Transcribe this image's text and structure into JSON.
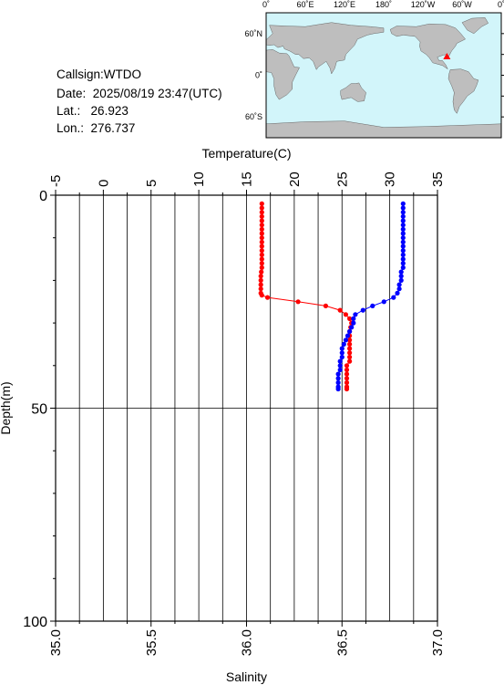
{
  "station": {
    "callsign_label": "Callsign:",
    "callsign": "WTDO",
    "date_label": "Date:",
    "date": "2025/08/19 23:47(UTC)",
    "lat_label": "Lat.:",
    "lat": "26.923",
    "lon_label": "Lon.:",
    "lon": "276.737"
  },
  "map": {
    "lon_ticks": [
      "0˚",
      "60˚E",
      "120˚E",
      "180˚",
      "120˚W",
      "60˚W",
      "0˚"
    ],
    "lat_ticks": [
      "60˚N",
      "0˚",
      "60˚S"
    ],
    "ocean_color": "#d2f5fa",
    "land_color": "#bebebe",
    "marker_color": "#ff0000",
    "marker_lon": 276.737,
    "marker_lat": 26.923
  },
  "chart_data": {
    "type": "line",
    "top_axis": {
      "label": "Temperature(C)",
      "range": [
        -5,
        35
      ],
      "ticks": [
        "-5",
        "0",
        "5",
        "10",
        "15",
        "20",
        "25",
        "30",
        "35"
      ]
    },
    "bottom_axis": {
      "label": "Salinity",
      "range": [
        35.0,
        37.0
      ],
      "ticks": [
        "35.0",
        "35.5",
        "36.0",
        "36.5",
        "37.0"
      ]
    },
    "y_axis": {
      "label": "Depth(m)",
      "range": [
        0,
        100
      ],
      "reversed": true,
      "ticks": [
        "0",
        "50",
        "100"
      ]
    },
    "grid": true,
    "series": [
      {
        "color": "#ff0000",
        "axis": "top",
        "points": [
          [
            16.6,
            2
          ],
          [
            16.6,
            3
          ],
          [
            16.6,
            4
          ],
          [
            16.6,
            5
          ],
          [
            16.6,
            6
          ],
          [
            16.6,
            7
          ],
          [
            16.6,
            8
          ],
          [
            16.6,
            9
          ],
          [
            16.6,
            10
          ],
          [
            16.6,
            11
          ],
          [
            16.6,
            12
          ],
          [
            16.6,
            13
          ],
          [
            16.6,
            14
          ],
          [
            16.6,
            15
          ],
          [
            16.6,
            16
          ],
          [
            16.6,
            17
          ],
          [
            16.55,
            18
          ],
          [
            16.5,
            19
          ],
          [
            16.5,
            20
          ],
          [
            16.5,
            21
          ],
          [
            16.5,
            22
          ],
          [
            16.5,
            23
          ],
          [
            16.6,
            23.5
          ],
          [
            17.2,
            24
          ],
          [
            20.4,
            25
          ],
          [
            23.3,
            26
          ],
          [
            24.8,
            27
          ],
          [
            25.4,
            28
          ],
          [
            25.8,
            29
          ],
          [
            26.0,
            30
          ],
          [
            25.9,
            31
          ],
          [
            25.8,
            32
          ],
          [
            25.8,
            33
          ],
          [
            25.8,
            34
          ],
          [
            25.8,
            35
          ],
          [
            25.8,
            36
          ],
          [
            25.8,
            37
          ],
          [
            25.8,
            38
          ],
          [
            25.8,
            39
          ],
          [
            25.5,
            40
          ],
          [
            25.5,
            41
          ],
          [
            25.5,
            42
          ],
          [
            25.5,
            43
          ],
          [
            25.5,
            44
          ],
          [
            25.5,
            45
          ],
          [
            25.5,
            45.5
          ]
        ]
      },
      {
        "color": "#0000ff",
        "axis": "bottom",
        "points": [
          [
            36.82,
            2
          ],
          [
            36.82,
            3
          ],
          [
            36.82,
            4
          ],
          [
            36.82,
            5
          ],
          [
            36.82,
            6
          ],
          [
            36.82,
            7
          ],
          [
            36.82,
            8
          ],
          [
            36.82,
            9
          ],
          [
            36.82,
            10
          ],
          [
            36.82,
            11
          ],
          [
            36.82,
            12
          ],
          [
            36.82,
            13
          ],
          [
            36.82,
            14
          ],
          [
            36.82,
            15
          ],
          [
            36.82,
            16
          ],
          [
            36.82,
            17
          ],
          [
            36.81,
            18
          ],
          [
            36.81,
            19
          ],
          [
            36.81,
            20
          ],
          [
            36.8,
            21
          ],
          [
            36.8,
            22
          ],
          [
            36.79,
            23
          ],
          [
            36.77,
            24
          ],
          [
            36.72,
            25
          ],
          [
            36.66,
            26
          ],
          [
            36.61,
            27
          ],
          [
            36.57,
            28
          ],
          [
            36.56,
            29
          ],
          [
            36.56,
            30
          ],
          [
            36.55,
            31
          ],
          [
            36.54,
            32
          ],
          [
            36.53,
            33
          ],
          [
            36.52,
            34
          ],
          [
            36.51,
            35
          ],
          [
            36.5,
            36
          ],
          [
            36.5,
            37
          ],
          [
            36.5,
            38
          ],
          [
            36.49,
            39
          ],
          [
            36.49,
            40
          ],
          [
            36.49,
            41
          ],
          [
            36.48,
            42
          ],
          [
            36.48,
            43
          ],
          [
            36.48,
            44
          ],
          [
            36.48,
            45
          ],
          [
            36.48,
            45.5
          ]
        ]
      }
    ]
  }
}
